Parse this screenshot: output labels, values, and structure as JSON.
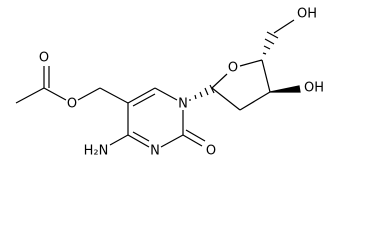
{
  "atoms": [
    {
      "label": "O"
    },
    {
      "label": "O"
    },
    {
      "label": "N"
    },
    {
      "label": "N"
    },
    {
      "label": "H₂N"
    },
    {
      "label": "O"
    },
    {
      "label": "O"
    },
    {
      "label": "OH"
    },
    {
      "label": "OH"
    }
  ]
}
